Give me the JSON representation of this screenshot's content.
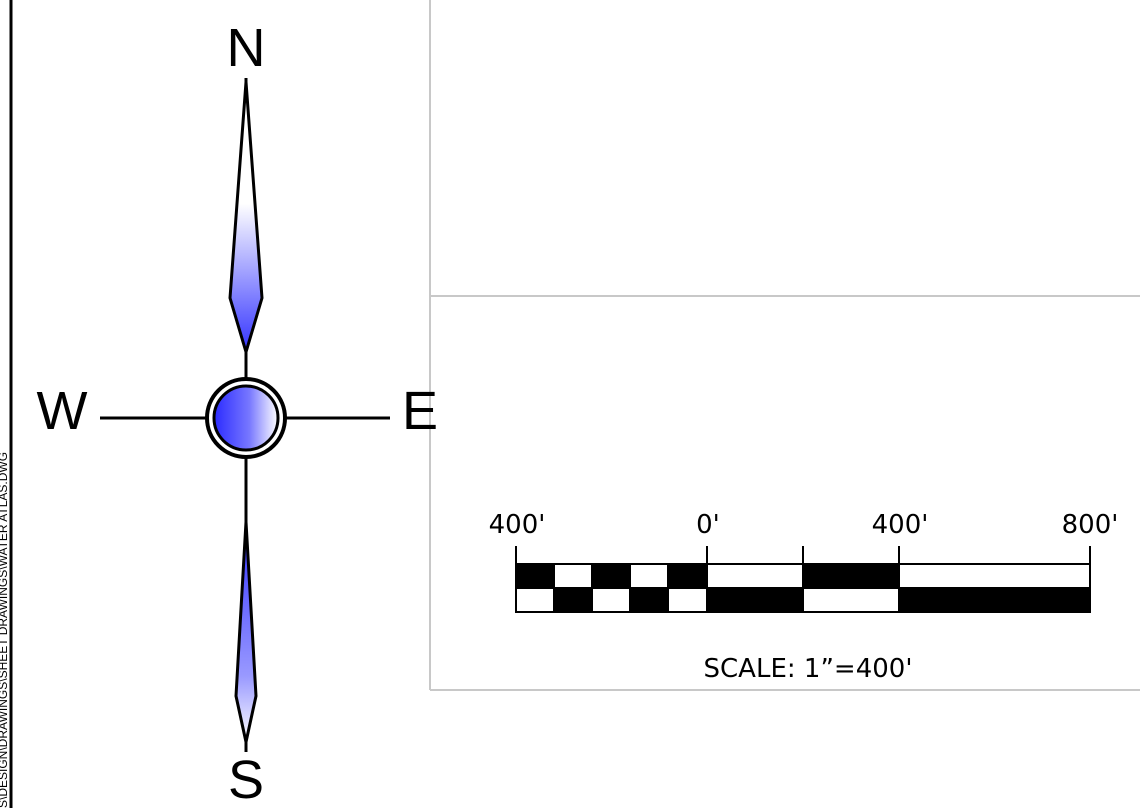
{
  "compass": {
    "north": "N",
    "south": "S",
    "east": "E",
    "west": "W"
  },
  "file_path_fragment": "S\\DESIGN\\DRAWINGS\\SHEET DRAWINGS\\WATER ATLAS.DWG",
  "scale_bar": {
    "tick_labels": [
      "400'",
      "0'",
      "400'",
      "800'"
    ],
    "caption": "SCALE: 1”=400'"
  },
  "colors": {
    "needle_blue": "#3333ff",
    "needle_white": "#ffffff",
    "frame_gray": "#c8c8c8",
    "ink": "#000000"
  }
}
